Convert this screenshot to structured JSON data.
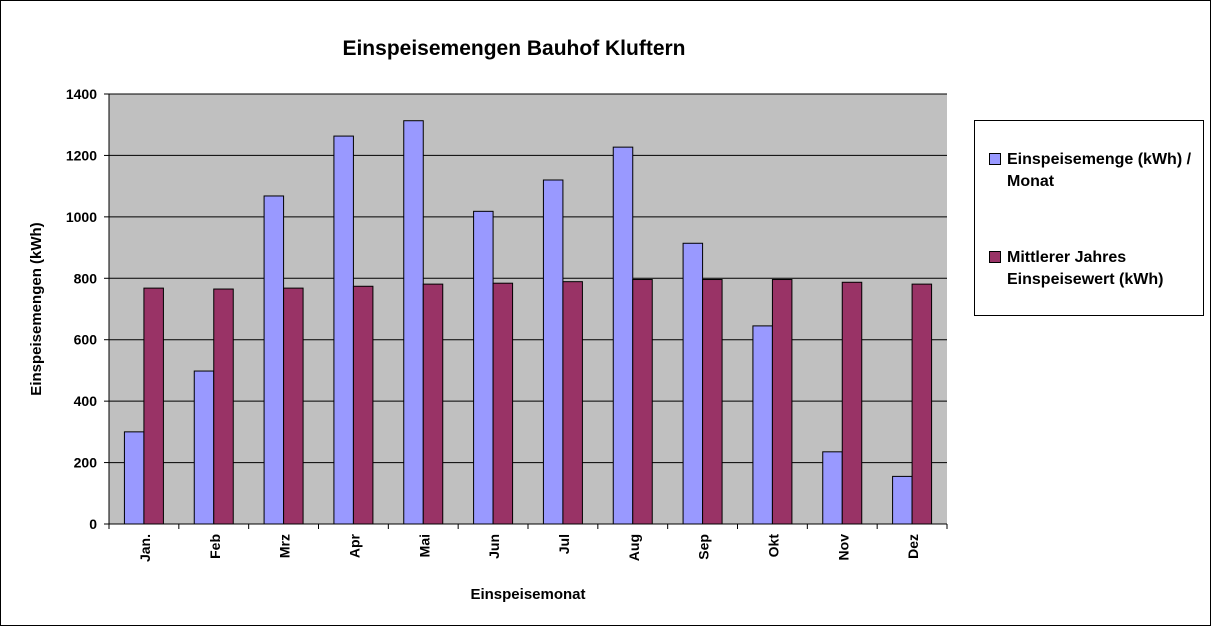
{
  "chart_data": {
    "type": "bar",
    "title": "Einspeisemengen Bauhof Kluftern",
    "xlabel": "Einspeisemonat",
    "ylabel": "Einspeisemengen (kWh)",
    "categories": [
      "Jan.",
      "Feb",
      "Mrz",
      "Apr",
      "Mai",
      "Jun",
      "Jul",
      "Aug",
      "Sep",
      "Okt",
      "Nov",
      "Dez"
    ],
    "series": [
      {
        "name": "Einspeisemenge (kWh) / Monat",
        "color": "#9999ff",
        "values": [
          300,
          498,
          1068,
          1263,
          1313,
          1018,
          1120,
          1227,
          914,
          645,
          235,
          155
        ]
      },
      {
        "name": "Mittlerer Jahres Einspeisewert (kWh)",
        "color": "#993366",
        "values": [
          768,
          765,
          768,
          774,
          781,
          784,
          789,
          796,
          796,
          796,
          787,
          781
        ]
      }
    ],
    "ylim": [
      0,
      1400
    ],
    "yticks": [
      "0",
      "200",
      "400",
      "600",
      "800",
      "1000",
      "1200",
      "1400"
    ],
    "grid": true,
    "plot_background": "#c0c0c0",
    "legend_position": "right"
  }
}
